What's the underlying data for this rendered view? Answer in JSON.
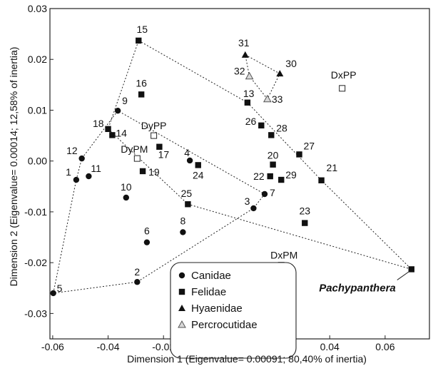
{
  "chart_data": {
    "type": "scatter",
    "xlabel": "Dimension 1 (Eigenvalue= 0.00091; 80,40% of inertia)",
    "ylabel": "Dimension 2 (Eigenvalue= 0.00014; 12,58% of inertia)",
    "xlim": [
      -0.061,
      0.076
    ],
    "ylim": [
      -0.035,
      0.03
    ],
    "xticks": [
      -0.06,
      -0.04,
      -0.02,
      0.0,
      0.02,
      0.04,
      0.06
    ],
    "xtick_labels": [
      "-0.06",
      "-0.04",
      "-0.02",
      "0.00",
      "0.02",
      "0.04",
      "0.06"
    ],
    "yticks": [
      -0.03,
      -0.02,
      -0.01,
      0.0,
      0.01,
      0.02,
      0.03
    ],
    "ytick_labels": [
      "-0.03",
      "-0.02",
      "-0.01",
      "0.00",
      "0.01",
      "0.02",
      "0.03"
    ],
    "grid": false,
    "legend_position": "bottom-center",
    "series": [
      {
        "name": "Canidae",
        "marker": "circle-filled",
        "points": [
          {
            "label": "1",
            "x": -0.0515,
            "y": -0.0037
          },
          {
            "label": "12",
            "x": -0.0495,
            "y": 0.0005
          },
          {
            "label": "11",
            "x": -0.047,
            "y": -0.003
          },
          {
            "label": "5",
            "x": -0.0598,
            "y": -0.026
          },
          {
            "label": "2",
            "x": -0.0295,
            "y": -0.0238
          },
          {
            "label": "9",
            "x": -0.0365,
            "y": 0.0099
          },
          {
            "label": "10",
            "x": -0.0335,
            "y": -0.0072
          },
          {
            "label": "6",
            "x": -0.026,
            "y": -0.016
          },
          {
            "label": "8",
            "x": -0.013,
            "y": -0.014
          },
          {
            "label": "4",
            "x": -0.0105,
            "y": 0.0001
          },
          {
            "label": "3",
            "x": 0.0125,
            "y": -0.0093
          },
          {
            "label": "7",
            "x": 0.0165,
            "y": -0.0065
          }
        ]
      },
      {
        "name": "Felidae",
        "marker": "square-filled",
        "points": [
          {
            "label": "15",
            "x": -0.029,
            "y": 0.0237
          },
          {
            "label": "16",
            "x": -0.028,
            "y": 0.0131
          },
          {
            "label": "18",
            "x": -0.04,
            "y": 0.0063
          },
          {
            "label": "14",
            "x": -0.0385,
            "y": 0.0051
          },
          {
            "label": "17",
            "x": -0.0215,
            "y": 0.0028
          },
          {
            "label": "19",
            "x": -0.0275,
            "y": -0.002
          },
          {
            "label": "24",
            "x": -0.0075,
            "y": -0.0008
          },
          {
            "label": "25",
            "x": -0.0112,
            "y": -0.0085
          },
          {
            "label": "13",
            "x": 0.0103,
            "y": 0.0115
          },
          {
            "label": "26",
            "x": 0.0153,
            "y": 0.007
          },
          {
            "label": "28",
            "x": 0.0189,
            "y": 0.0051
          },
          {
            "label": "20",
            "x": 0.0195,
            "y": -0.0007
          },
          {
            "label": "22",
            "x": 0.0185,
            "y": -0.003
          },
          {
            "label": "29",
            "x": 0.0225,
            "y": -0.0037
          },
          {
            "label": "27",
            "x": 0.029,
            "y": 0.0013
          },
          {
            "label": "21",
            "x": 0.037,
            "y": -0.0038
          },
          {
            "label": "23",
            "x": 0.031,
            "y": -0.0122
          },
          {
            "label": "Pachypanthera",
            "x": 0.0695,
            "y": -0.0213
          }
        ]
      },
      {
        "name": "Hyaenidae",
        "marker": "triangle-filled",
        "points": [
          {
            "label": "31",
            "x": 0.0095,
            "y": 0.0209
          },
          {
            "label": "30",
            "x": 0.022,
            "y": 0.0172
          }
        ]
      },
      {
        "name": "Percrocutidae",
        "marker": "triangle-open",
        "points": [
          {
            "label": "32",
            "x": 0.011,
            "y": 0.0167
          },
          {
            "label": "33",
            "x": 0.0175,
            "y": 0.0122
          }
        ]
      },
      {
        "name": "",
        "marker": "square-open",
        "points": [
          {
            "label": "DxPP",
            "x": 0.0445,
            "y": 0.0143
          },
          {
            "label": "DyPP",
            "x": -0.0235,
            "y": 0.005
          },
          {
            "label": "DyPM",
            "x": -0.0295,
            "y": 0.0005
          },
          {
            "label": "DxPM",
            "x": 0.0225,
            "y": -0.0205
          }
        ]
      }
    ],
    "hulls": [
      {
        "name": "Canidae",
        "points": [
          [
            -0.0598,
            -0.026
          ],
          [
            -0.0515,
            -0.0037
          ],
          [
            -0.0495,
            0.0005
          ],
          [
            -0.0365,
            0.0099
          ],
          [
            0.0165,
            -0.0065
          ],
          [
            0.0125,
            -0.0093
          ],
          [
            -0.0295,
            -0.0238
          ],
          [
            -0.0598,
            -0.026
          ]
        ]
      },
      {
        "name": "Felidae",
        "points": [
          [
            -0.029,
            0.0237
          ],
          [
            0.0103,
            0.0115
          ],
          [
            0.037,
            -0.0038
          ],
          [
            0.0695,
            -0.0213
          ],
          [
            -0.0112,
            -0.0085
          ],
          [
            -0.04,
            0.0063
          ],
          [
            -0.029,
            0.0237
          ]
        ]
      },
      {
        "name": "Hyaenidae",
        "points": [
          [
            0.0095,
            0.0209
          ],
          [
            0.022,
            0.0172
          ],
          [
            0.0175,
            0.0122
          ],
          [
            0.011,
            0.0167
          ],
          [
            0.0095,
            0.0209
          ]
        ]
      }
    ],
    "callout": {
      "label": "Pachypanthera",
      "x": 0.0695,
      "y": -0.0213
    }
  }
}
